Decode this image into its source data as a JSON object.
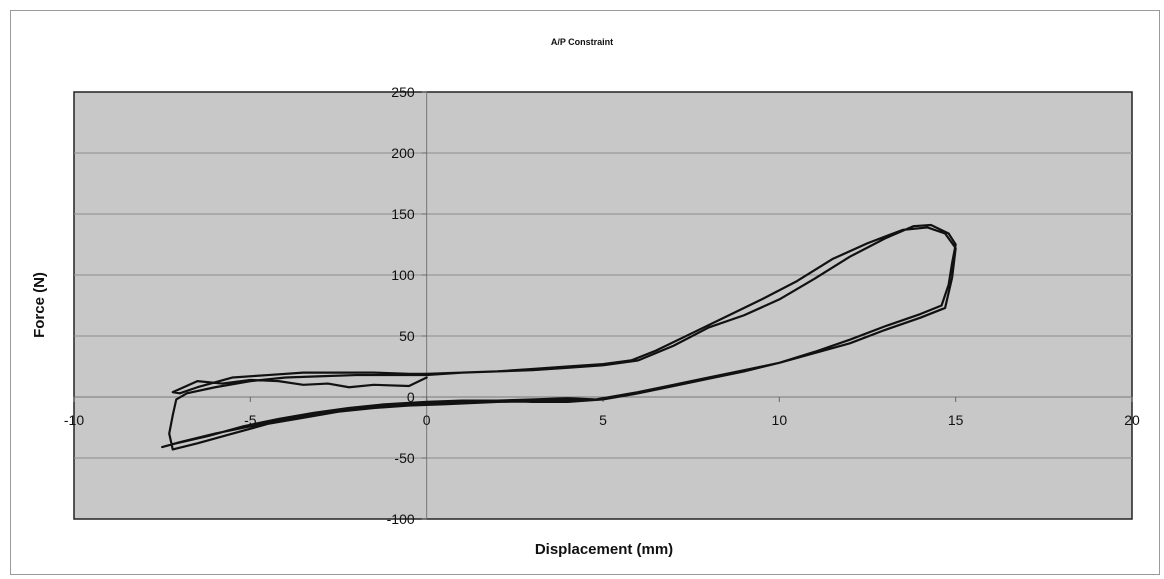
{
  "chart_data": {
    "type": "line",
    "title": "A/P Constraint",
    "xlabel": "Displacement (mm)",
    "ylabel": "Force (N)",
    "xlim": [
      -10,
      20
    ],
    "ylim": [
      -100,
      250
    ],
    "x_ticks": [
      -10,
      -5,
      0,
      5,
      10,
      15,
      20
    ],
    "y_ticks": [
      250,
      200,
      150,
      100,
      50,
      0,
      -50,
      -100
    ],
    "grid": "horizontal",
    "legend": "none",
    "plot_background": "#c8c8c8",
    "line_color": "#111111",
    "series": [
      {
        "points": [
          [
            0,
            16
          ],
          [
            -0.5,
            9
          ],
          [
            -1.5,
            10
          ],
          [
            -2.2,
            8
          ],
          [
            -2.8,
            11
          ],
          [
            -3.5,
            10
          ],
          [
            -4.2,
            13
          ],
          [
            -5.0,
            14
          ],
          [
            -5.8,
            11
          ],
          [
            -6.5,
            13
          ],
          [
            -7.2,
            4
          ],
          [
            -7.0,
            3
          ],
          [
            -6.5,
            8
          ],
          [
            -6.0,
            12
          ],
          [
            -5.5,
            16
          ],
          [
            -4.5,
            18
          ],
          [
            -3.5,
            20
          ],
          [
            -2.5,
            20
          ],
          [
            -1.5,
            20
          ],
          [
            -0.5,
            19
          ],
          [
            0,
            19
          ],
          [
            1,
            20
          ],
          [
            2,
            21
          ],
          [
            3,
            22
          ],
          [
            4,
            24
          ],
          [
            5,
            26
          ],
          [
            6,
            30
          ],
          [
            7,
            42
          ],
          [
            8,
            57
          ],
          [
            9,
            67
          ],
          [
            10,
            80
          ],
          [
            11,
            97
          ],
          [
            12,
            115
          ],
          [
            13,
            130
          ],
          [
            13.8,
            140
          ],
          [
            14.3,
            141
          ],
          [
            14.8,
            134
          ],
          [
            15,
            125
          ],
          [
            14.9,
            110
          ],
          [
            14.8,
            92
          ],
          [
            14.6,
            75
          ],
          [
            14,
            68
          ],
          [
            13,
            58
          ],
          [
            12,
            47
          ],
          [
            11,
            37
          ],
          [
            10,
            28
          ],
          [
            9,
            21
          ],
          [
            8,
            15
          ],
          [
            7,
            9
          ],
          [
            6,
            3
          ],
          [
            5,
            -2
          ],
          [
            4,
            -4
          ],
          [
            3,
            -4
          ],
          [
            2,
            -3
          ],
          [
            1,
            -4
          ],
          [
            0,
            -5
          ],
          [
            -1,
            -7
          ],
          [
            -2,
            -10
          ],
          [
            -3,
            -14
          ],
          [
            -4,
            -18
          ],
          [
            -5,
            -24
          ],
          [
            -6,
            -30
          ],
          [
            -7,
            -37
          ],
          [
            -7.5,
            -41
          ],
          [
            -7.1,
            -38
          ],
          [
            -6.2,
            -32
          ],
          [
            -5.2,
            -24
          ],
          [
            -4.2,
            -18
          ],
          [
            -3.2,
            -13
          ],
          [
            -2.2,
            -9
          ],
          [
            -1.2,
            -6
          ],
          [
            0,
            -4
          ],
          [
            1,
            -3
          ],
          [
            2,
            -3
          ],
          [
            3,
            -2
          ],
          [
            4,
            -1
          ],
          [
            4.8,
            -2
          ],
          [
            6,
            4
          ],
          [
            7,
            10
          ],
          [
            8,
            16
          ],
          [
            9,
            22
          ],
          [
            10,
            28
          ],
          [
            11,
            36
          ],
          [
            12,
            44
          ],
          [
            13,
            55
          ],
          [
            14,
            65
          ],
          [
            14.7,
            73
          ],
          [
            14.9,
            98
          ],
          [
            15,
            122
          ],
          [
            14.7,
            134
          ],
          [
            14.2,
            139
          ],
          [
            13.5,
            137
          ],
          [
            12.5,
            126
          ],
          [
            11.5,
            113
          ],
          [
            10.5,
            95
          ],
          [
            9.5,
            80
          ],
          [
            8.5,
            66
          ],
          [
            7.5,
            52
          ],
          [
            6.5,
            38
          ],
          [
            5.8,
            30
          ],
          [
            5,
            27
          ],
          [
            4,
            25
          ],
          [
            3,
            23
          ],
          [
            2,
            21
          ],
          [
            1,
            20
          ],
          [
            0,
            18
          ],
          [
            -1,
            18
          ],
          [
            -2,
            18
          ],
          [
            -3,
            17
          ],
          [
            -4,
            16
          ],
          [
            -5,
            13
          ],
          [
            -6,
            8
          ],
          [
            -6.8,
            3
          ],
          [
            -7.1,
            -2
          ],
          [
            -7.2,
            -15
          ],
          [
            -7.3,
            -30
          ],
          [
            -7.2,
            -43
          ],
          [
            -6.5,
            -38
          ],
          [
            -5.5,
            -30
          ],
          [
            -4.5,
            -22
          ],
          [
            -3.5,
            -17
          ],
          [
            -2.5,
            -12
          ],
          [
            -1.5,
            -9
          ],
          [
            -0.5,
            -7
          ],
          [
            0.5,
            -6
          ],
          [
            2,
            -4
          ],
          [
            3.5,
            -3
          ],
          [
            5,
            -2
          ]
        ]
      }
    ]
  }
}
